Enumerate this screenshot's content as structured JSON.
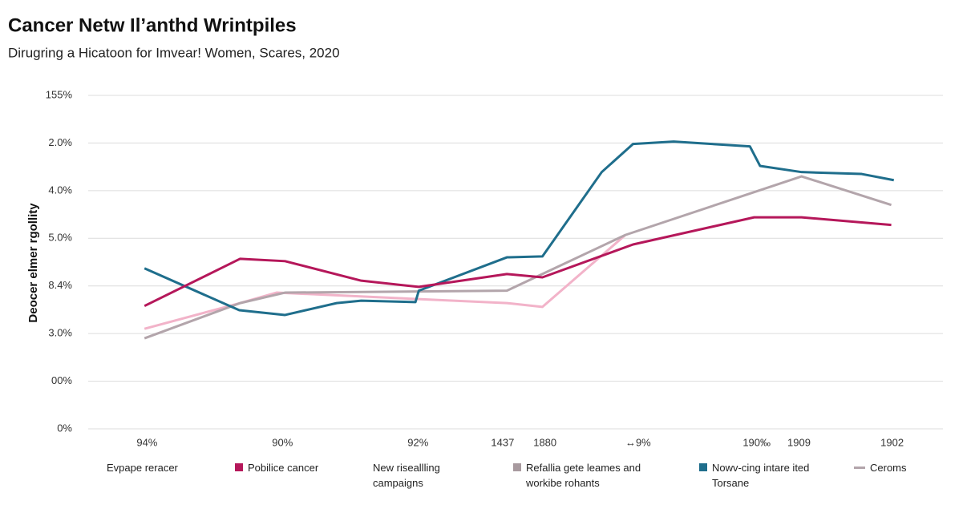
{
  "chart_data": {
    "type": "line",
    "title": "Cancer Netw Il’anthd Wrintpiles",
    "subtitle": "Dirugring a Hicatoon for Imvear! Women, Scares, 2020",
    "y_label": "Deocer elmer rgollity",
    "xlim": [
      0,
      100
    ],
    "xticks": [
      {
        "value": 6,
        "label": "94%"
      },
      {
        "value": 22,
        "label": "90%"
      },
      {
        "value": 38,
        "label": "92%"
      },
      {
        "value": 48,
        "label": "1437"
      },
      {
        "value": 53,
        "label": "1880"
      },
      {
        "value": 64,
        "label": "↔9%"
      },
      {
        "value": 78,
        "label": "190‰"
      },
      {
        "value": 83,
        "label": "1909"
      },
      {
        "value": 94,
        "label": "1902"
      }
    ],
    "ylim": [
      0,
      7
    ],
    "yticks": [
      {
        "value": 0,
        "label": "0%"
      },
      {
        "value": 1,
        "label": "00%"
      },
      {
        "value": 2,
        "label": "3.0%"
      },
      {
        "value": 3,
        "label": "8.4%"
      },
      {
        "value": 4,
        "label": "5.0%"
      },
      {
        "value": 5,
        "label": "4.0%"
      },
      {
        "value": 6,
        "label": "2.0%"
      },
      {
        "value": 7,
        "label": "155%"
      }
    ],
    "grid": true,
    "series": [
      {
        "color": "#f2b3c9",
        "x": [
          5.7,
          17.0,
          21.3,
          48.5,
          52.7,
          62.5
        ],
        "values": [
          2.1,
          2.64,
          2.86,
          2.64,
          2.56,
          4.07
        ]
      },
      {
        "color": "#b3a5ab",
        "x": [
          5.7,
          17.0,
          22.3,
          48.5,
          62.5,
          83.3,
          93.9
        ],
        "values": [
          1.9,
          2.64,
          2.86,
          2.9,
          4.07,
          5.3,
          4.7
        ]
      },
      {
        "color": "#1f6e8c",
        "x": [
          5.7,
          16.9,
          22.3,
          28.4,
          31.3,
          37.7,
          38.1,
          48.5,
          52.7,
          59.7,
          63.4,
          68.2,
          77.2,
          78.4,
          83.3,
          90.4,
          94.2
        ],
        "values": [
          3.37,
          2.49,
          2.39,
          2.64,
          2.69,
          2.66,
          2.9,
          3.6,
          3.62,
          5.39,
          5.98,
          6.03,
          5.93,
          5.52,
          5.39,
          5.35,
          5.22
        ]
      },
      {
        "color": "#b5175a",
        "x": [
          5.7,
          17.0,
          22.3,
          31.3,
          38.1,
          48.5,
          52.7,
          63.4,
          77.7,
          83.3,
          93.9
        ],
        "values": [
          2.58,
          3.57,
          3.52,
          3.11,
          2.98,
          3.25,
          3.18,
          3.87,
          4.44,
          4.44,
          4.28
        ]
      }
    ],
    "legend": [
      {
        "label": "Evpape reracer"
      },
      {
        "label": "Pobilice cancer",
        "color": "#b5175a"
      },
      {
        "label": "New riseallling campaigns"
      },
      {
        "label": "Refallia gete leames and workibe rohants",
        "color": "#a89a9f"
      },
      {
        "label": "Nowv-cing intare ited Torsane",
        "color": "#1f6e8c"
      },
      {
        "label": "Ceroms",
        "color": "#b3a5ab"
      }
    ]
  }
}
